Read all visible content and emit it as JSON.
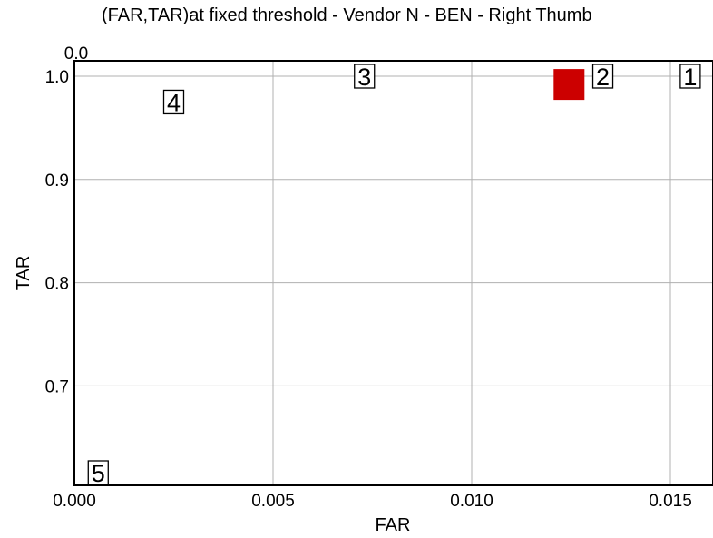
{
  "chart_data": {
    "type": "scatter",
    "title": "(FAR,TAR)at fixed threshold - Vendor N - BEN - Right Thumb",
    "xlabel": "FAR",
    "ylabel": "TAR",
    "xlim": [
      0.0,
      0.016
    ],
    "ylim": [
      0.606,
      1.015
    ],
    "x_ticks": [
      "0.000",
      "0.005",
      "0.010",
      "0.015"
    ],
    "x_tick_values": [
      0.0,
      0.005,
      0.01,
      0.015
    ],
    "y_ticks": [
      "0.7",
      "0.8",
      "0.9",
      "1.0"
    ],
    "y_tick_values": [
      0.7,
      0.8,
      0.9,
      1.0
    ],
    "top_corner_label": "0.0",
    "grid": true,
    "points": [
      {
        "label": "1",
        "x": 0.0155,
        "y": 1.0
      },
      {
        "label": "2",
        "x": 0.0133,
        "y": 1.0
      },
      {
        "label": "3",
        "x": 0.0073,
        "y": 1.0
      },
      {
        "label": "4",
        "x": 0.0025,
        "y": 0.975
      },
      {
        "label": "5",
        "x": 0.0006,
        "y": 0.616
      }
    ],
    "highlight": {
      "x": 0.01245,
      "y": 0.992,
      "color": "#cc0000",
      "marker": "square"
    }
  }
}
